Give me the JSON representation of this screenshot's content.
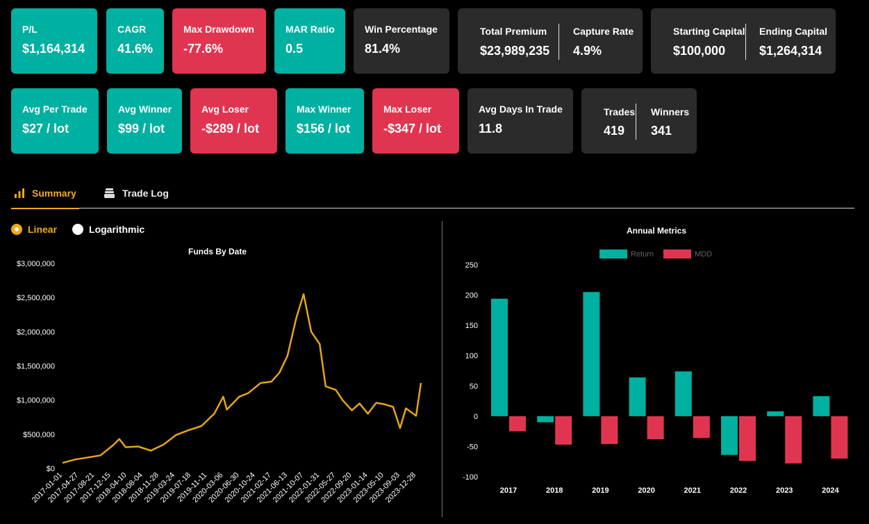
{
  "cards_row1": [
    {
      "label": "P/L",
      "value": "$1,164,314",
      "color": "teal"
    },
    {
      "label": "CAGR",
      "value": "41.6%",
      "color": "teal"
    },
    {
      "label": "Max Drawdown",
      "value": "-77.6%",
      "color": "red"
    },
    {
      "label": "MAR Ratio",
      "value": "0.5",
      "color": "teal"
    },
    {
      "label": "Win Percentage",
      "value": "81.4%",
      "color": "dark"
    }
  ],
  "premium_card": {
    "left_label": "Total Premium",
    "left_value": "$23,989,235",
    "right_label": "Capture Rate",
    "right_value": "4.9%"
  },
  "capital_card": {
    "left_label": "Starting Capital",
    "left_value": "$100,000",
    "right_label": "Ending Capital",
    "right_value": "$1,264,314"
  },
  "cards_row2": [
    {
      "label": "Avg Per Trade",
      "value": "$27 / lot",
      "color": "teal"
    },
    {
      "label": "Avg Winner",
      "value": "$99 / lot",
      "color": "teal"
    },
    {
      "label": "Avg Loser",
      "value": "-$289 / lot",
      "color": "red"
    },
    {
      "label": "Max Winner",
      "value": "$156 / lot",
      "color": "teal"
    },
    {
      "label": "Max Loser",
      "value": "-$347 / lot",
      "color": "red"
    },
    {
      "label": "Avg Days In Trade",
      "value": "11.8",
      "color": "dark"
    }
  ],
  "trades_card": {
    "left_label": "Trades",
    "left_value": "419",
    "right_label": "Winners",
    "right_value": "341"
  },
  "tabs": [
    {
      "label": "Summary",
      "icon": "bar-chart-icon",
      "active": true
    },
    {
      "label": "Trade Log",
      "icon": "stack-icon",
      "active": false
    }
  ],
  "scale_options": [
    {
      "label": "Linear",
      "selected": true
    },
    {
      "label": "Logarithmic",
      "selected": false
    }
  ],
  "colors": {
    "teal": "#00b0a0",
    "red": "#e03550",
    "dark": "#2b2b2b",
    "accent": "#f2a91a"
  },
  "chart_data": [
    {
      "type": "line",
      "title": "Funds By Date",
      "ylim": [
        0,
        3000000
      ],
      "y_ticks": [
        "$0",
        "$500,000",
        "$1,000,000",
        "$1,500,000",
        "$2,000,000",
        "$2,500,000",
        "$3,000,000"
      ],
      "x_ticks": [
        "2017-01-01",
        "2017-04-27",
        "2017-08-21",
        "2017-12-15",
        "2018-04-10",
        "2018-08-04",
        "2018-11-28",
        "2019-03-24",
        "2019-07-18",
        "2019-11-11",
        "2020-03-06",
        "2020-06-30",
        "2020-10-24",
        "2021-02-17",
        "2021-06-13",
        "2021-10-07",
        "2022-01-31",
        "2022-05-27",
        "2022-09-20",
        "2023-01-14",
        "2023-05-10",
        "2023-09-03",
        "2023-12-28"
      ],
      "series": [
        {
          "color": "#e5a51a",
          "x": [
            "2017-01-01",
            "2017-04-01",
            "2017-07-01",
            "2017-10-01",
            "2018-01-01",
            "2018-02-15",
            "2018-04-01",
            "2018-07-01",
            "2018-10-01",
            "2019-01-01",
            "2019-04-01",
            "2019-07-01",
            "2019-10-01",
            "2020-01-01",
            "2020-03-06",
            "2020-04-01",
            "2020-06-30",
            "2020-09-01",
            "2020-12-01",
            "2021-02-17",
            "2021-04-15",
            "2021-06-13",
            "2021-08-15",
            "2021-10-07",
            "2021-12-01",
            "2022-01-31",
            "2022-03-15",
            "2022-05-27",
            "2022-07-15",
            "2022-09-20",
            "2022-11-15",
            "2023-01-14",
            "2023-03-15",
            "2023-05-10",
            "2023-07-15",
            "2023-09-03",
            "2023-10-15",
            "2023-12-28",
            "2024-02-01"
          ],
          "y": [
            80000,
            130000,
            160000,
            190000,
            340000,
            430000,
            310000,
            320000,
            260000,
            350000,
            490000,
            560000,
            620000,
            800000,
            1050000,
            860000,
            1050000,
            1100000,
            1250000,
            1270000,
            1400000,
            1650000,
            2200000,
            2550000,
            2000000,
            1820000,
            1200000,
            1150000,
            1000000,
            850000,
            950000,
            800000,
            960000,
            940000,
            900000,
            590000,
            880000,
            770000,
            1250000
          ]
        }
      ]
    },
    {
      "type": "bar",
      "title": "Annual Metrics",
      "categories": [
        "2017",
        "2018",
        "2019",
        "2020",
        "2021",
        "2022",
        "2023",
        "2024"
      ],
      "ylim": [
        -100,
        250
      ],
      "y_ticks": [
        -100,
        -50,
        0,
        50,
        100,
        150,
        200,
        250
      ],
      "legend": "top",
      "series": [
        {
          "name": "Return",
          "color": "#00b0a0",
          "values": [
            194,
            -10,
            205,
            64,
            74,
            -64,
            8,
            33
          ]
        },
        {
          "name": "MDD",
          "color": "#e03550",
          "values": [
            -25,
            -47,
            -46,
            -38,
            -36,
            -74,
            -78,
            -70
          ]
        }
      ]
    }
  ]
}
